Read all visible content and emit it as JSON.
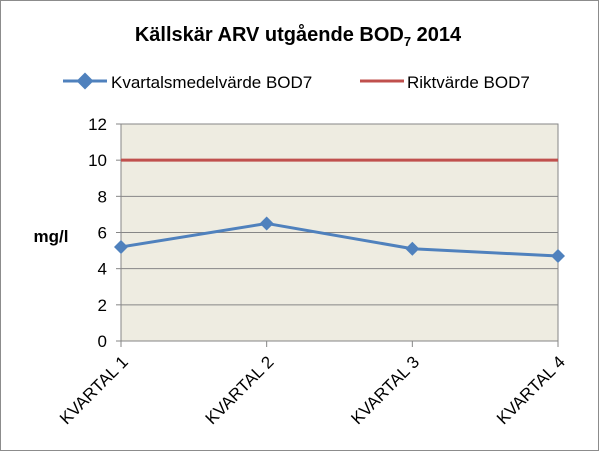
{
  "chart_data": {
    "type": "line",
    "title": "Källskär ARV utgående BOD",
    "title_subscript": "7",
    "title_suffix": " 2014",
    "ylabel": "mg/l",
    "xlabel": "",
    "categories": [
      "KVARTAL 1",
      "KVARTAL 2",
      "KVARTAL 3",
      "KVARTAL 4"
    ],
    "ylim": [
      0,
      12
    ],
    "yticks": [
      "0",
      "2",
      "4",
      "6",
      "8",
      "10",
      "12"
    ],
    "grid": true,
    "legend_position": "top",
    "plot_background": "#eeece1",
    "series": [
      {
        "name": "Kvartalsmedelvärde BOD7",
        "values": [
          5.2,
          6.5,
          5.1,
          4.7
        ],
        "color": "#4f81bd",
        "marker": "diamond"
      },
      {
        "name": "Riktvärde BOD7",
        "values": [
          10,
          10,
          10,
          10
        ],
        "color": "#c0504d",
        "marker": "none"
      }
    ]
  }
}
